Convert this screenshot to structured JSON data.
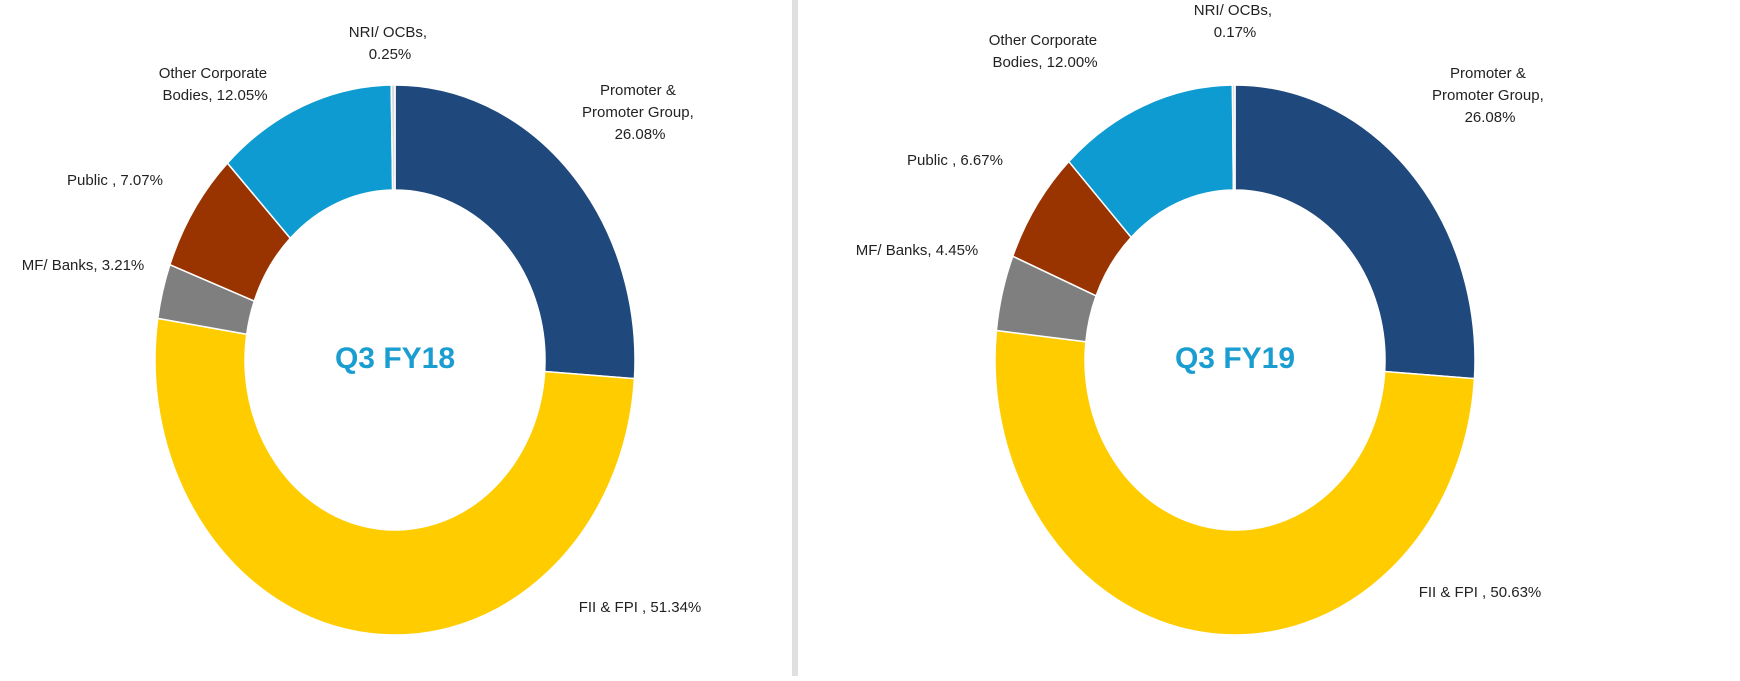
{
  "chart_data": [
    {
      "type": "donut",
      "title": "Q3 FY18",
      "values": [
        26.08,
        51.34,
        3.21,
        7.07,
        12.05,
        0.25
      ],
      "value_labels": [
        "Promoter & Promoter Group, 26.08%",
        "FII & FPI , 51.34%",
        "MF/ Banks, 3.21%",
        "Public , 7.07%",
        "Other Corporate Bodies, 12.05%",
        "NRI/ OCBs, 0.25%"
      ],
      "colors": [
        "#1f497d",
        "#ffcc00",
        "#7f7f7f",
        "#993300",
        "#0e9bd1",
        "#d9d9d9"
      ]
    },
    {
      "type": "donut",
      "title": "Q3 FY19",
      "values": [
        26.08,
        50.63,
        4.45,
        6.67,
        12,
        0.17
      ],
      "value_labels": [
        "Promoter & Promoter Group, 26.08%",
        "FII & FPI , 50.63%",
        "MF/ Banks, 4.45%",
        "Public , 6.67%",
        "Other Corporate Bodies, 12.00%",
        "NRI/ OCBs, 0.17%"
      ],
      "colors": [
        "#1f497d",
        "#ffcc00",
        "#7f7f7f",
        "#993300",
        "#0e9bd1",
        "#d9d9d9"
      ]
    }
  ]
}
